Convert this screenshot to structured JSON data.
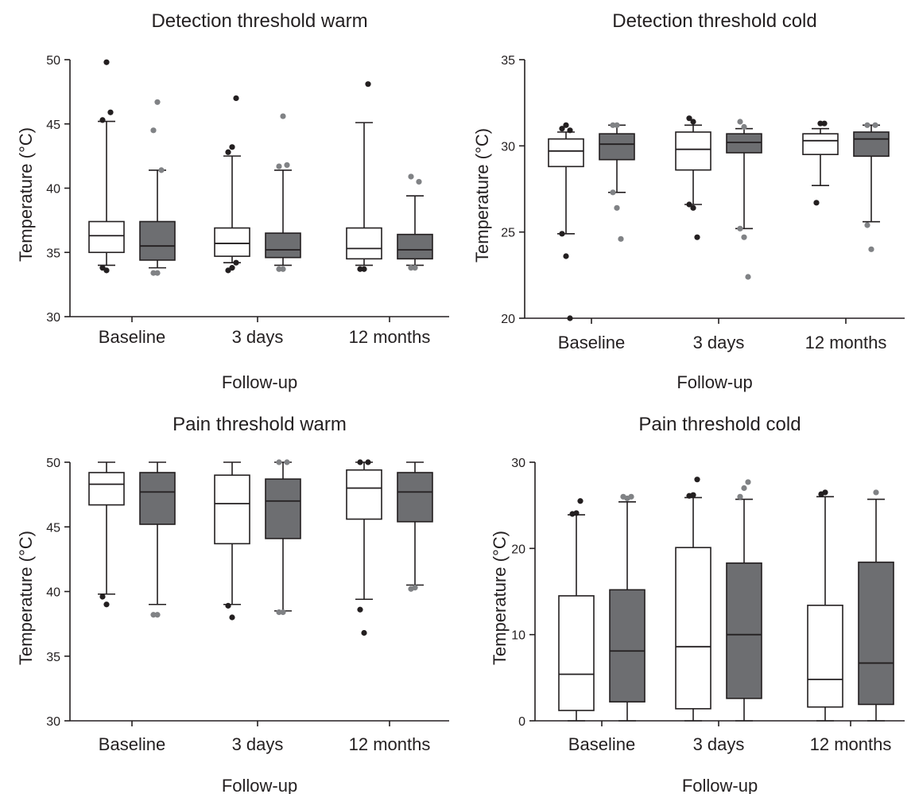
{
  "colors": {
    "ink": "#231f20",
    "group_a_fill": "#ffffff",
    "group_b_fill": "#6d6e71",
    "group_a_outlier": "#231f20",
    "group_b_outlier": "#808285"
  },
  "chart_data": [
    {
      "type": "box",
      "title": "Detection threshold warm",
      "xlabel": "Follow-up",
      "ylabel": "Temperature (°C)",
      "ylim": [
        30,
        50
      ],
      "yticks": [
        "30",
        "35",
        "40",
        "45",
        "50"
      ],
      "categories": [
        "Baseline",
        "3 days",
        "12 months"
      ],
      "series": [
        {
          "boxes": [
            {
              "whisker_low": 34.0,
              "q1": 35.0,
              "median": 36.3,
              "q3": 37.4,
              "whisker_high": 45.2,
              "outliers": [
                33.8,
                33.6,
                45.9,
                45.3,
                49.8
              ]
            },
            {
              "whisker_low": 34.2,
              "q1": 34.7,
              "median": 35.7,
              "q3": 36.9,
              "whisker_high": 42.5,
              "outliers": [
                33.6,
                33.8,
                34.2,
                42.8,
                43.2,
                47.0
              ]
            },
            {
              "whisker_low": 34.0,
              "q1": 34.5,
              "median": 35.3,
              "q3": 36.9,
              "whisker_high": 45.1,
              "outliers": [
                33.7,
                33.7,
                48.1
              ]
            }
          ]
        },
        {
          "boxes": [
            {
              "whisker_low": 33.8,
              "q1": 34.4,
              "median": 35.5,
              "q3": 37.4,
              "whisker_high": 41.4,
              "outliers": [
                33.4,
                33.4,
                41.4,
                44.5,
                46.7
              ]
            },
            {
              "whisker_low": 34.0,
              "q1": 34.6,
              "median": 35.2,
              "q3": 36.5,
              "whisker_high": 41.4,
              "outliers": [
                33.7,
                33.7,
                41.8,
                41.7,
                45.6
              ]
            },
            {
              "whisker_low": 34.0,
              "q1": 34.5,
              "median": 35.2,
              "q3": 36.4,
              "whisker_high": 39.4,
              "outliers": [
                33.8,
                33.8,
                40.5,
                40.9
              ]
            }
          ]
        }
      ]
    },
    {
      "type": "box",
      "title": "Detection threshold cold",
      "xlabel": "Follow-up",
      "ylabel": "Temperature (°C)",
      "ylim": [
        20,
        35
      ],
      "yticks": [
        "20",
        "25",
        "30",
        "35"
      ],
      "categories": [
        "Baseline",
        "3 days",
        "12 months"
      ],
      "series": [
        {
          "boxes": [
            {
              "whisker_low": 24.9,
              "q1": 28.8,
              "median": 29.7,
              "q3": 30.4,
              "whisker_high": 30.8,
              "outliers": [
                24.9,
                23.6,
                20.0,
                31.0,
                31.2,
                30.9
              ]
            },
            {
              "whisker_low": 26.6,
              "q1": 28.6,
              "median": 29.8,
              "q3": 30.8,
              "whisker_high": 31.2,
              "outliers": [
                26.6,
                26.4,
                24.7,
                31.6,
                31.4
              ]
            },
            {
              "whisker_low": 27.7,
              "q1": 29.5,
              "median": 30.3,
              "q3": 30.7,
              "whisker_high": 31.0,
              "outliers": [
                26.7,
                31.3,
                31.3
              ]
            }
          ]
        },
        {
          "boxes": [
            {
              "whisker_low": 27.3,
              "q1": 29.2,
              "median": 30.1,
              "q3": 30.7,
              "whisker_high": 31.2,
              "outliers": [
                27.3,
                26.4,
                24.6,
                31.2,
                31.2
              ]
            },
            {
              "whisker_low": 25.2,
              "q1": 29.6,
              "median": 30.2,
              "q3": 30.7,
              "whisker_high": 31.0,
              "outliers": [
                25.2,
                24.7,
                22.4,
                31.4,
                31.1
              ]
            },
            {
              "whisker_low": 25.6,
              "q1": 29.4,
              "median": 30.4,
              "q3": 30.8,
              "whisker_high": 31.2,
              "outliers": [
                25.4,
                24.0,
                31.2,
                31.2
              ]
            }
          ]
        }
      ]
    },
    {
      "type": "box",
      "title": "Pain threshold warm",
      "xlabel": "Follow-up",
      "ylabel": "Temperature (°C)",
      "ylim": [
        30,
        50
      ],
      "yticks": [
        "30",
        "35",
        "40",
        "45",
        "50"
      ],
      "categories": [
        "Baseline",
        "3 days",
        "12 months"
      ],
      "series": [
        {
          "boxes": [
            {
              "whisker_low": 39.8,
              "q1": 46.7,
              "median": 48.3,
              "q3": 49.2,
              "whisker_high": 50.0,
              "outliers": [
                39.6,
                39.0
              ]
            },
            {
              "whisker_low": 39.0,
              "q1": 43.7,
              "median": 46.8,
              "q3": 49.0,
              "whisker_high": 50.0,
              "outliers": [
                38.9,
                38.0
              ]
            },
            {
              "whisker_low": 39.4,
              "q1": 45.6,
              "median": 48.0,
              "q3": 49.4,
              "whisker_high": 50.0,
              "outliers": [
                38.6,
                36.8,
                50.0,
                50.0
              ]
            }
          ]
        },
        {
          "boxes": [
            {
              "whisker_low": 39.0,
              "q1": 45.2,
              "median": 47.7,
              "q3": 49.2,
              "whisker_high": 50.0,
              "outliers": [
                38.2,
                38.2
              ]
            },
            {
              "whisker_low": 38.5,
              "q1": 44.1,
              "median": 47.0,
              "q3": 48.7,
              "whisker_high": 50.0,
              "outliers": [
                38.4,
                38.4,
                50.0,
                50.0
              ]
            },
            {
              "whisker_low": 40.5,
              "q1": 45.4,
              "median": 47.7,
              "q3": 49.2,
              "whisker_high": 50.0,
              "outliers": [
                40.2,
                40.3
              ]
            }
          ]
        }
      ]
    },
    {
      "type": "box",
      "title": "Pain threshold cold",
      "xlabel": "Follow-up",
      "ylabel": "Temperature (°C)",
      "ylim": [
        0,
        30
      ],
      "yticks": [
        "0",
        "10",
        "20",
        "30"
      ],
      "categories": [
        "Baseline",
        "3 days",
        "12 months"
      ],
      "series": [
        {
          "boxes": [
            {
              "whisker_low": 0.0,
              "q1": 1.2,
              "median": 5.4,
              "q3": 14.5,
              "whisker_high": 23.9,
              "outliers": [
                24.0,
                24.1,
                25.5
              ]
            },
            {
              "whisker_low": 0.0,
              "q1": 1.4,
              "median": 8.6,
              "q3": 20.1,
              "whisker_high": 25.9,
              "outliers": [
                26.1,
                26.2,
                28.0
              ]
            },
            {
              "whisker_low": 0.0,
              "q1": 1.6,
              "median": 4.8,
              "q3": 13.4,
              "whisker_high": 26.0,
              "outliers": [
                26.3,
                26.5
              ]
            }
          ]
        },
        {
          "boxes": [
            {
              "whisker_low": 0.0,
              "q1": 2.2,
              "median": 8.1,
              "q3": 15.2,
              "whisker_high": 25.4,
              "outliers": [
                26.0,
                25.8,
                26.0
              ]
            },
            {
              "whisker_low": 0.0,
              "q1": 2.6,
              "median": 10.0,
              "q3": 18.3,
              "whisker_high": 25.7,
              "outliers": [
                26.0,
                27.0,
                27.7
              ]
            },
            {
              "whisker_low": 0.0,
              "q1": 1.9,
              "median": 6.7,
              "q3": 18.4,
              "whisker_high": 25.7,
              "outliers": [
                26.5
              ]
            }
          ]
        }
      ]
    }
  ]
}
